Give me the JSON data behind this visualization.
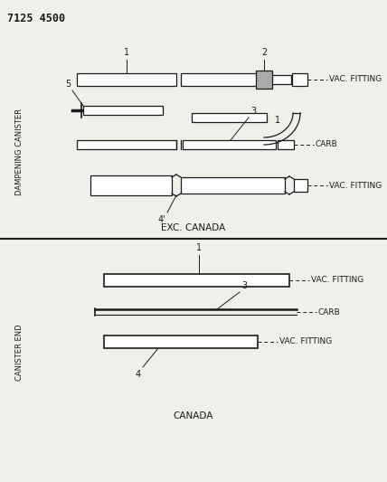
{
  "title_num": "7125 4500",
  "bg_color": "#f0f0eb",
  "line_color": "#1a1a1a",
  "top_label": "DAMPENING CANISTER",
  "bottom_label": "CANISTER END",
  "exc_canada_text": "EXC. CANADA",
  "canada_text": "CANADA",
  "figsize": [
    4.28,
    5.33
  ],
  "dpi": 100
}
